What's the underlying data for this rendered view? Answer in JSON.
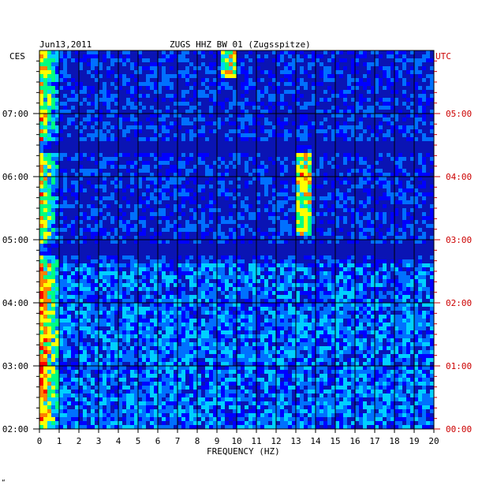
{
  "header": {
    "date": "Jun13,2011",
    "station": "ZUGS HHZ BW 01 (Zugsspitze)"
  },
  "timezones": {
    "left": "CES",
    "right": "UTC"
  },
  "corner_mark": "“",
  "chart_data": {
    "type": "heatmap",
    "title": "ZUGS HHZ BW 01 (Zugsspitze)",
    "date": "Jun13,2011",
    "xlabel": "FREQUENCY (HZ)",
    "xlim": [
      0,
      20
    ],
    "x_ticks": [
      "0",
      "1",
      "2",
      "3",
      "4",
      "5",
      "6",
      "7",
      "8",
      "9",
      "10",
      "11",
      "12",
      "13",
      "14",
      "15",
      "16",
      "17",
      "18",
      "19",
      "20"
    ],
    "ylabel_left": "CES",
    "ylabel_right": "UTC",
    "y_ticks_left": [
      "02:00",
      "03:00",
      "04:00",
      "05:00",
      "06:00",
      "07:00"
    ],
    "y_ticks_right": [
      "00:00",
      "01:00",
      "02:00",
      "03:00",
      "04:00",
      "05:00"
    ],
    "time_range_hours_cest": [
      2.0,
      7.9
    ],
    "grid": true,
    "colormap": [
      "#0000a0",
      "#0000ff",
      "#0070ff",
      "#00d0ff",
      "#00ff80",
      "#ffff00",
      "#ff8000",
      "#ff0000"
    ],
    "background_color": "#0a14b4",
    "features": [
      {
        "label": "low-frequency noise band",
        "freq_range_hz": [
          0,
          1.2
        ],
        "time_range_cest": [
          2.0,
          7.9
        ]
      },
      {
        "label": "signal near 9.6 Hz",
        "freq_range_hz": [
          9.2,
          9.9
        ],
        "time_range_cest": [
          7.5,
          7.9
        ]
      },
      {
        "label": "signal near 13.5 Hz",
        "freq_range_hz": [
          13.1,
          13.8
        ],
        "time_range_cest": [
          5.0,
          6.4
        ]
      }
    ]
  }
}
